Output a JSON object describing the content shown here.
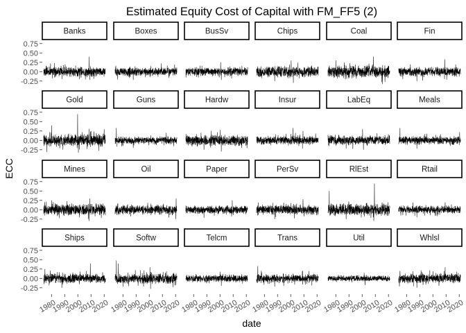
{
  "chart_data": {
    "type": "line",
    "facet_layout": "wrap",
    "facet_columns": 6,
    "facet_rows": 4,
    "title": "Estimated Equity Cost of Capital with FM_FF5 (2)",
    "xlabel": "date",
    "ylabel": "ECC",
    "xlim": [
      1973,
      2022
    ],
    "ylim": [
      -0.42,
      0.82
    ],
    "x_ticks": [
      1980,
      1990,
      2000,
      2010,
      2020
    ],
    "x_tick_labels": [
      "1980",
      "1990",
      "2000",
      "2010",
      "2020"
    ],
    "y_ticks": [
      -0.25,
      0,
      0.25,
      0.5,
      0.75
    ],
    "y_tick_labels": [
      "-0.25",
      "0.00",
      "0.25",
      "0.50",
      "0.75"
    ],
    "grid": false,
    "legend": "none",
    "line_color": "#000000",
    "panel_border_color": "#000000",
    "sampling": "monthly",
    "x_range_data": [
      1974,
      2021
    ],
    "panels": [
      {
        "name": "Banks",
        "min": -0.25,
        "max": 0.4,
        "spikes": [
          [
            2008.5,
            0.4
          ],
          [
            2009.2,
            -0.22
          ],
          [
            1988,
            -0.2
          ]
        ]
      },
      {
        "name": "Boxes",
        "min": -0.22,
        "max": 0.22,
        "spikes": [
          [
            1987.8,
            -0.22
          ],
          [
            2009,
            0.22
          ]
        ]
      },
      {
        "name": "BusSv",
        "min": -0.22,
        "max": 0.25,
        "spikes": [
          [
            2000.5,
            0.25
          ],
          [
            2001,
            -0.22
          ],
          [
            2008.8,
            -0.18
          ]
        ]
      },
      {
        "name": "Chips",
        "min": -0.3,
        "max": 0.3,
        "spikes": [
          [
            2000.3,
            0.3
          ],
          [
            2002,
            -0.3
          ],
          [
            1987.8,
            -0.25
          ]
        ]
      },
      {
        "name": "Coal",
        "min": -0.33,
        "max": 0.4,
        "spikes": [
          [
            2008.5,
            0.4
          ],
          [
            2015.5,
            -0.33
          ],
          [
            1980,
            0.3
          ]
        ]
      },
      {
        "name": "Fin",
        "min": -0.25,
        "max": 0.33,
        "spikes": [
          [
            2009,
            0.33
          ],
          [
            1987.8,
            -0.25
          ],
          [
            2008.8,
            -0.2
          ]
        ]
      },
      {
        "name": "Gold",
        "min": -0.33,
        "max": 0.7,
        "spikes": [
          [
            1999.8,
            0.7
          ],
          [
            2000.4,
            -0.33
          ],
          [
            1980,
            0.4
          ],
          [
            2020,
            0.3
          ]
        ]
      },
      {
        "name": "Guns",
        "min": -0.2,
        "max": 0.33,
        "spikes": [
          [
            1975,
            0.33
          ],
          [
            2012.9,
            0.2
          ],
          [
            1987.8,
            -0.2
          ]
        ]
      },
      {
        "name": "Hardw",
        "min": -0.3,
        "max": 0.28,
        "spikes": [
          [
            2000.2,
            0.28
          ],
          [
            2001,
            -0.3
          ],
          [
            1987.8,
            -0.25
          ]
        ]
      },
      {
        "name": "Insur",
        "min": -0.22,
        "max": 0.33,
        "spikes": [
          [
            2001.7,
            0.33
          ],
          [
            2008.9,
            -0.22
          ],
          [
            2009.3,
            0.25
          ]
        ]
      },
      {
        "name": "LabEq",
        "min": -0.25,
        "max": 0.3,
        "spikes": [
          [
            2000.3,
            0.3
          ],
          [
            2001,
            -0.25
          ],
          [
            1987.8,
            -0.22
          ]
        ]
      },
      {
        "name": "Meals",
        "min": -0.22,
        "max": 0.33,
        "spikes": [
          [
            1975,
            0.33
          ],
          [
            1987.8,
            -0.22
          ],
          [
            2020.3,
            0.22
          ]
        ]
      },
      {
        "name": "Mines",
        "min": -0.3,
        "max": 0.3,
        "spikes": [
          [
            2009,
            0.3
          ],
          [
            2008.7,
            -0.3
          ],
          [
            1980,
            0.25
          ]
        ]
      },
      {
        "name": "Oil",
        "min": -0.25,
        "max": 0.3,
        "spikes": [
          [
            2020.4,
            0.3
          ],
          [
            2020.2,
            -0.25
          ],
          [
            1986,
            -0.18
          ]
        ]
      },
      {
        "name": "Paper",
        "min": -0.22,
        "max": 0.25,
        "spikes": [
          [
            2009.3,
            0.25
          ],
          [
            1987.8,
            -0.22
          ],
          [
            2008.8,
            -0.18
          ]
        ]
      },
      {
        "name": "PerSv",
        "min": -0.25,
        "max": 0.28,
        "spikes": [
          [
            2009.3,
            0.28
          ],
          [
            1987.8,
            -0.25
          ],
          [
            2000,
            0.18
          ]
        ]
      },
      {
        "name": "RlEst",
        "min": -0.3,
        "max": 0.7,
        "spikes": [
          [
            2009.3,
            0.7
          ],
          [
            1975,
            0.5
          ],
          [
            2008.8,
            -0.3
          ],
          [
            1987.8,
            -0.25
          ]
        ]
      },
      {
        "name": "Rtail",
        "min": -0.2,
        "max": 0.2,
        "spikes": [
          [
            1987.8,
            -0.2
          ],
          [
            2009.3,
            0.2
          ]
        ]
      },
      {
        "name": "Ships",
        "min": -0.25,
        "max": 0.4,
        "spikes": [
          [
            2009.5,
            0.4
          ],
          [
            1987.8,
            -0.25
          ],
          [
            1975,
            0.25
          ]
        ]
      },
      {
        "name": "Softw",
        "min": -0.28,
        "max": 0.48,
        "spikes": [
          [
            1975,
            0.48
          ],
          [
            1976.5,
            0.4
          ],
          [
            2000.5,
            0.3
          ],
          [
            2001,
            -0.28
          ]
        ]
      },
      {
        "name": "Telcm",
        "min": -0.2,
        "max": 0.2,
        "spikes": [
          [
            2001,
            -0.2
          ],
          [
            2000,
            0.18
          ]
        ]
      },
      {
        "name": "Trans",
        "min": -0.22,
        "max": 0.33,
        "spikes": [
          [
            1975,
            0.33
          ],
          [
            1987.8,
            -0.22
          ],
          [
            2009,
            0.2
          ]
        ]
      },
      {
        "name": "Util",
        "min": -0.18,
        "max": 0.15,
        "spikes": [
          [
            2001.5,
            0.15
          ],
          [
            2002.2,
            -0.18
          ]
        ]
      },
      {
        "name": "Whlsl",
        "min": -0.25,
        "max": 0.3,
        "spikes": [
          [
            2009.3,
            0.3
          ],
          [
            1987.8,
            -0.25
          ],
          [
            1975,
            0.2
          ]
        ]
      }
    ]
  }
}
